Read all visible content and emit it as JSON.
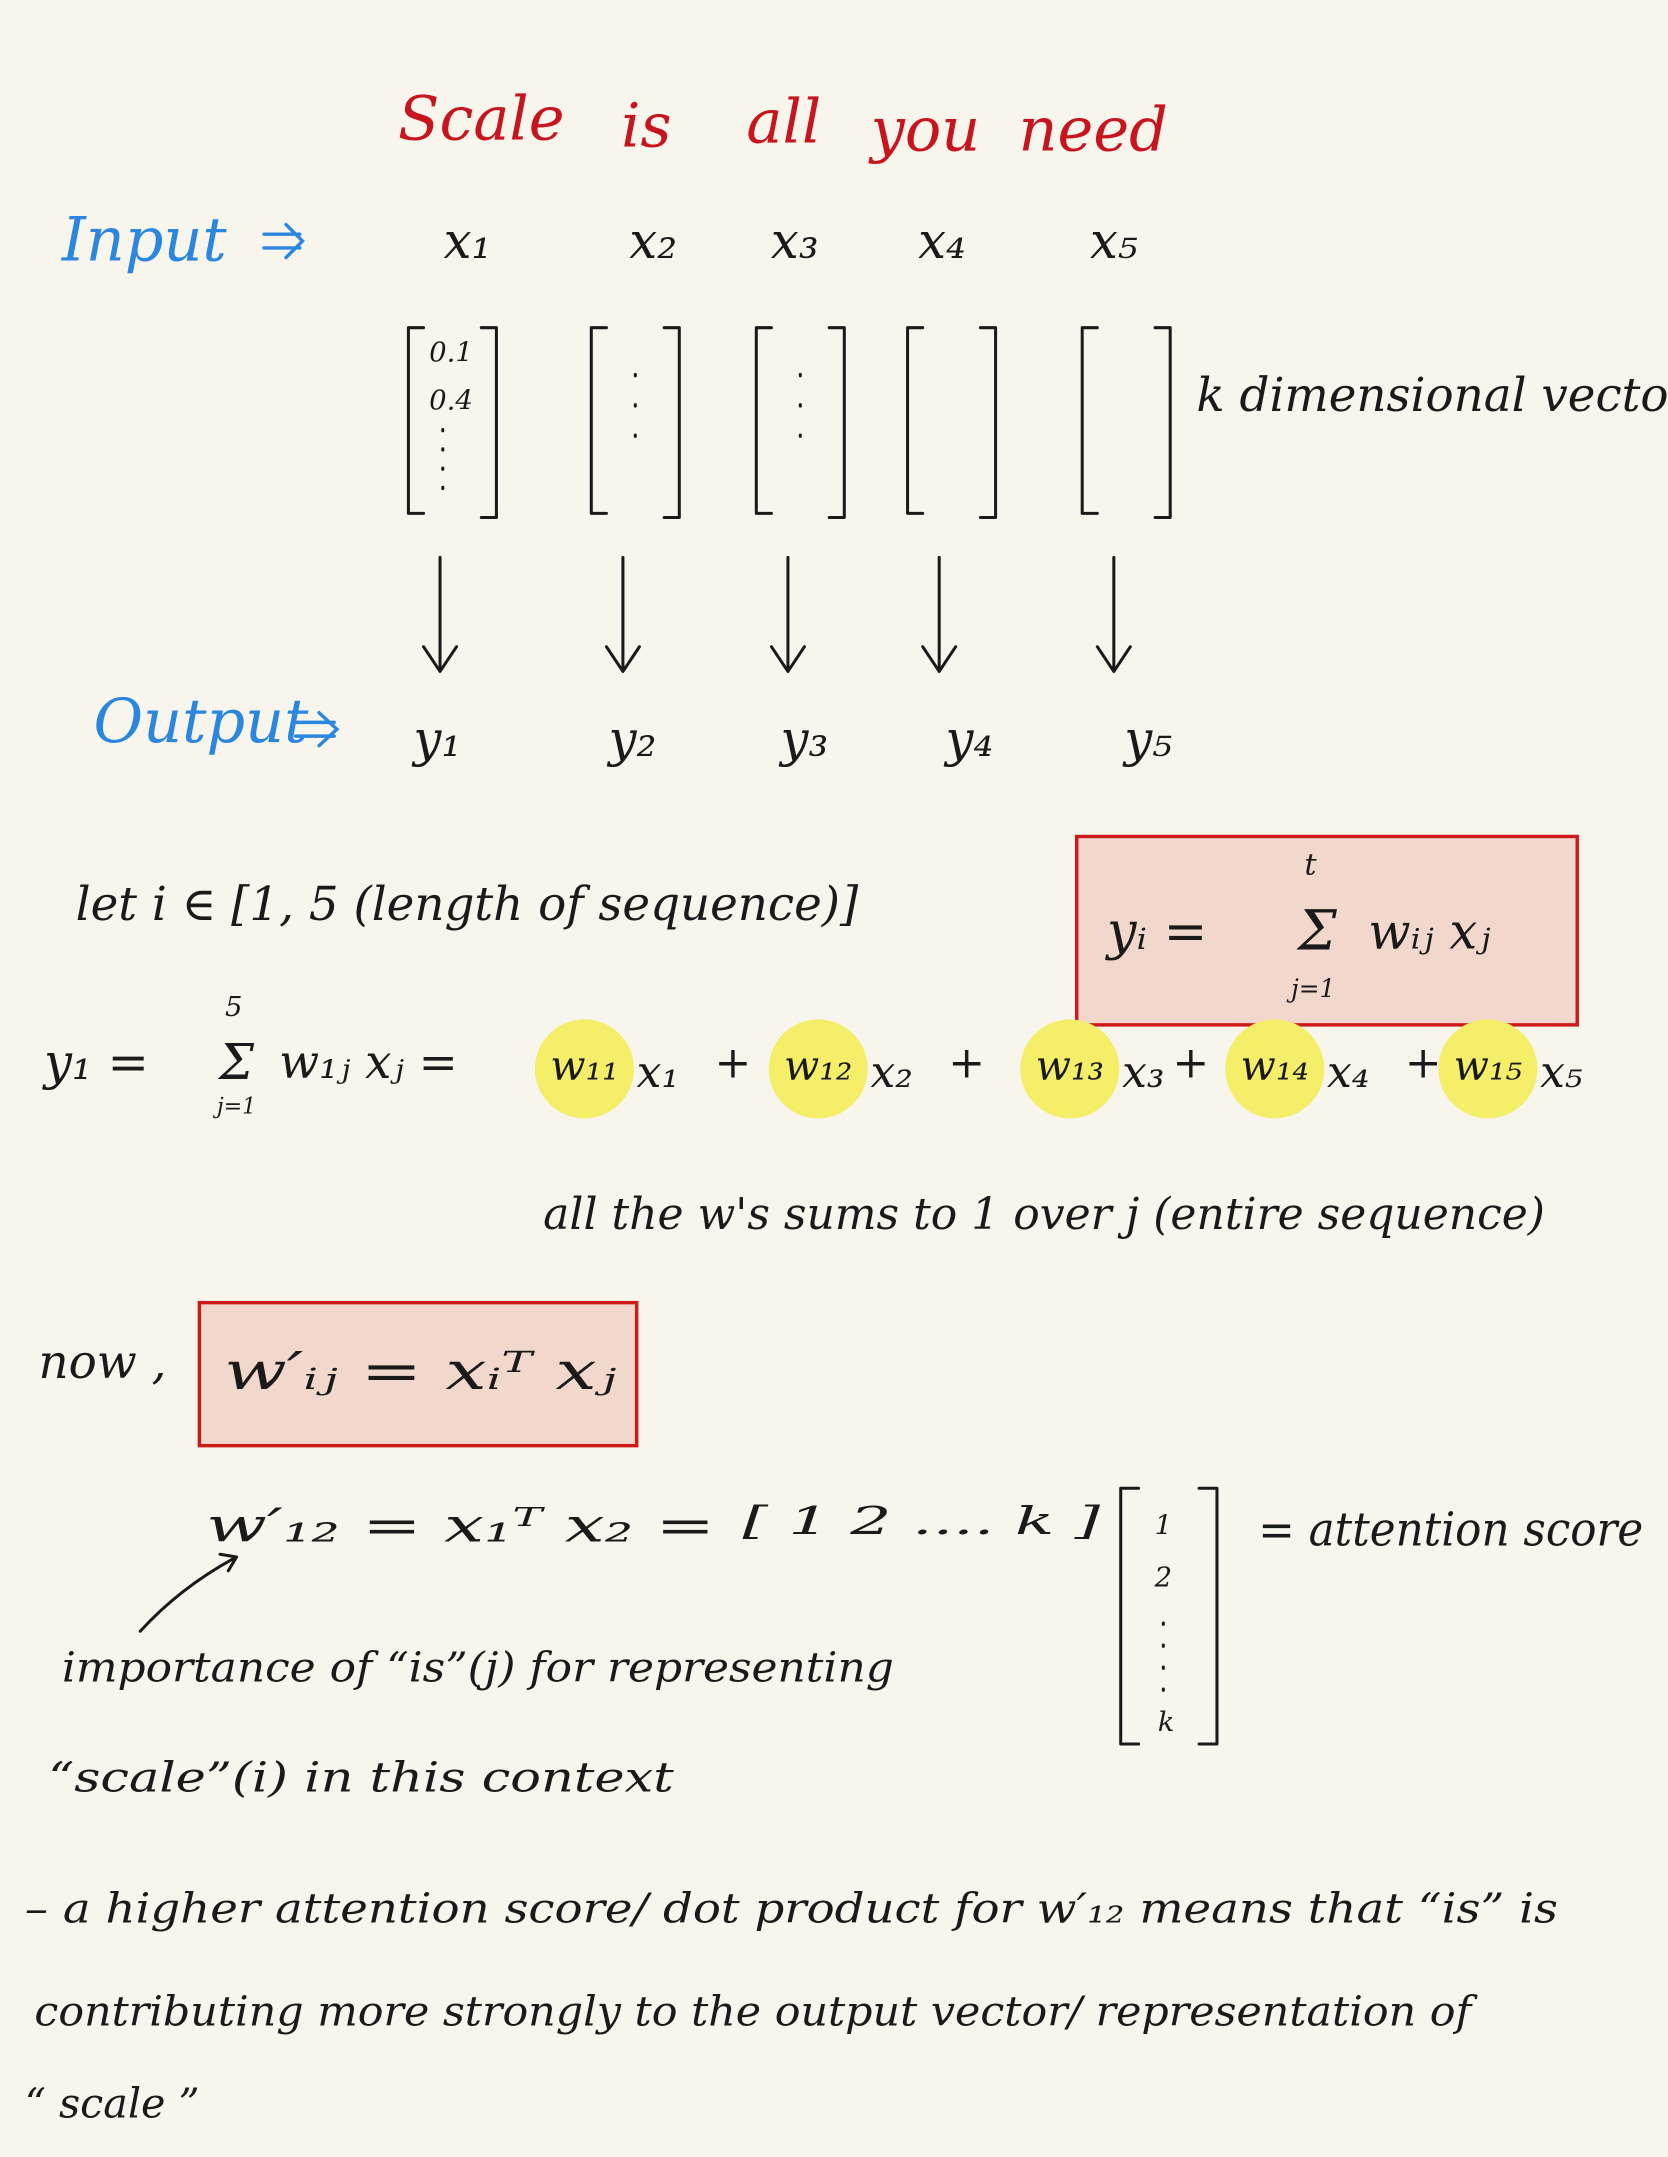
{
  "title": {
    "words": [
      "Scale",
      "is",
      "all",
      "you",
      "need"
    ]
  },
  "input": {
    "label": "Input",
    "tokens": [
      "x₁",
      "x₂",
      "x₃",
      "x₄",
      "x₅"
    ],
    "first_vector": [
      "0.1",
      "0.4"
    ],
    "vector_note": "k dimensional vector"
  },
  "output": {
    "label": "Output",
    "tokens": [
      "y₁",
      "y₂",
      "y₃",
      "y₄",
      "y₅"
    ]
  },
  "let_line": "let i ∈ [1, 5 (length of sequence)]",
  "general_formula": {
    "lhs": "yᵢ =",
    "sigma": "Σ",
    "upper": "t",
    "lower": "j=1",
    "rhs": "wᵢⱼ xⱼ"
  },
  "y1_formula": {
    "lhs": "y₁ =",
    "sigma": "Σ",
    "upper": "5",
    "lower": "j=1",
    "rhs": "w₁ⱼ xⱼ =",
    "plus": "+",
    "terms": [
      {
        "w": "w₁₁",
        "x": "x₁"
      },
      {
        "w": "w₁₂",
        "x": "x₂"
      },
      {
        "w": "w₁₃",
        "x": "x₃"
      },
      {
        "w": "w₁₄",
        "x": "x₄"
      },
      {
        "w": "w₁₅",
        "x": "x₅"
      }
    ]
  },
  "sum_note": "all the w's sums to 1 over j (entire sequence)",
  "now": {
    "label": "now ,",
    "formula": "w′ᵢⱼ  =  xᵢᵀ xⱼ"
  },
  "example": {
    "lhs": "w′₁₂  =  x₁ᵀ x₂  =",
    "row_vector": "[ 1   2 ....   k ]",
    "column_vector": [
      "1",
      "2",
      "k"
    ],
    "result": "= attention score"
  },
  "importance": [
    "importance of “is”(j) for representing",
    "“scale”(i) in this context"
  ],
  "bullet": [
    "– a higher attention score/ dot product for w′₁₂ means that “is” is",
    "contributing more strongly to the output vector/ representation of",
    "“ scale ”"
  ]
}
